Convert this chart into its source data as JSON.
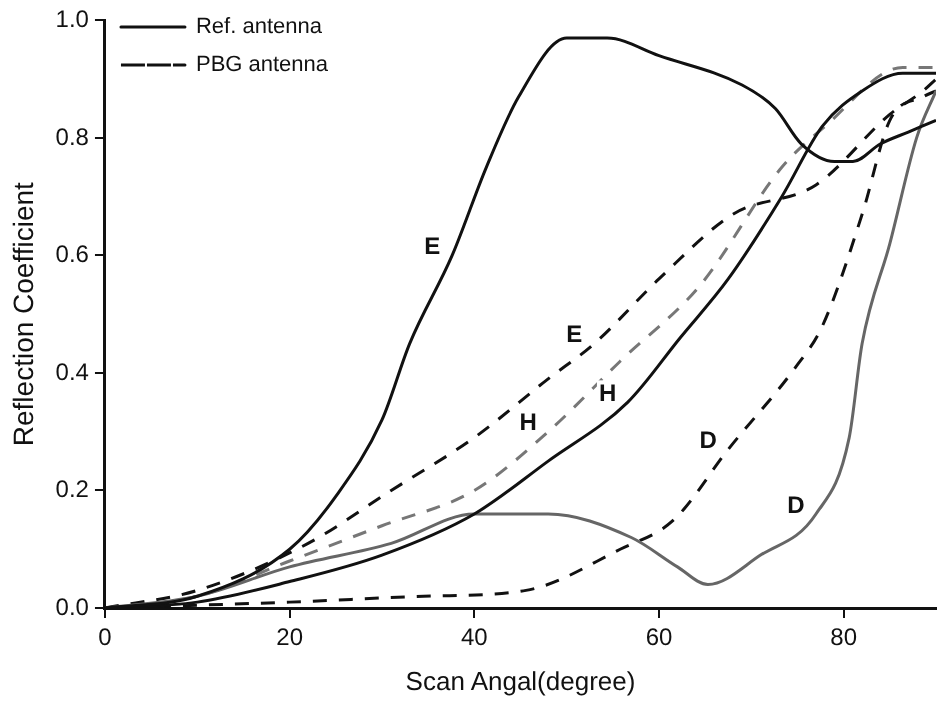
{
  "chart_data": {
    "type": "line",
    "xlabel": "Scan Angal(degree)",
    "ylabel": "Reflection Coefficient",
    "xlim": [
      0,
      90
    ],
    "xticks": [
      0,
      20,
      40,
      60,
      80
    ],
    "ylim": [
      0,
      1
    ],
    "yticks": [
      {
        "value": 0,
        "label": "0.0"
      },
      {
        "value": 0.2,
        "label": "0.2"
      },
      {
        "value": 0.4,
        "label": "0.4"
      },
      {
        "value": 0.6,
        "label": "0.6"
      },
      {
        "value": 0.8,
        "label": "0.8"
      },
      {
        "value": 1,
        "label": "1.0"
      }
    ],
    "grid": false,
    "legend": "top left",
    "marker": "none",
    "series": [
      {
        "name": "Ref. antenna",
        "color": "#111111",
        "line_style": "solid",
        "x": [
          0,
          10,
          20,
          25,
          30,
          33,
          37.6,
          41.3,
          44.8,
          50,
          54.4,
          60,
          69,
          72.6,
          75.4,
          79,
          81,
          84,
          87,
          90
        ],
        "values": [
          0,
          0.02,
          0.1,
          0.19,
          0.32,
          0.45,
          0.6,
          0.75,
          0.87,
          0.97,
          0.97,
          0.94,
          0.89,
          0.85,
          0.79,
          0.76,
          0.76,
          0.79,
          0.81,
          0.83
        ]
      },
      {
        "color": "#111111",
        "line_style": "solid",
        "x": [
          0,
          10,
          20,
          30,
          40,
          48,
          56.6,
          62.3,
          67.5,
          73.3,
          77.7,
          82,
          86.4,
          90
        ],
        "values": [
          0,
          0.01,
          0.045,
          0.09,
          0.16,
          0.25,
          0.35,
          0.46,
          0.56,
          0.7,
          0.82,
          0.88,
          0.91,
          0.91
        ]
      },
      {
        "color": "#666666",
        "line_style": "solid",
        "x": [
          0,
          10,
          20,
          31,
          40,
          48,
          57,
          62,
          65.3,
          71,
          77,
          80.6,
          82,
          85,
          87.9,
          90
        ],
        "values": [
          0,
          0.02,
          0.07,
          0.11,
          0.16,
          0.16,
          0.12,
          0.07,
          0.04,
          0.09,
          0.16,
          0.29,
          0.45,
          0.62,
          0.8,
          0.88
        ]
      },
      {
        "name": "PBG antenna",
        "color": "#111111",
        "line_style": "dashed",
        "x": [
          0,
          10,
          22,
          31,
          40,
          48,
          53,
          60,
          68,
          77,
          85,
          88.6,
          90
        ],
        "values": [
          0,
          0.03,
          0.11,
          0.2,
          0.29,
          0.39,
          0.45,
          0.56,
          0.67,
          0.72,
          0.84,
          0.88,
          0.9
        ]
      },
      {
        "color": "#777777",
        "line_style": "dashed",
        "x": [
          0,
          10,
          20,
          30,
          40,
          48,
          55.8,
          64.5,
          73.3,
          78,
          86.4,
          90
        ],
        "values": [
          0,
          0.02,
          0.08,
          0.14,
          0.2,
          0.3,
          0.42,
          0.55,
          0.75,
          0.82,
          0.92,
          0.92
        ]
      },
      {
        "color": "#111111",
        "line_style": "dashed",
        "x": [
          0,
          20,
          34.5,
          45.6,
          55.8,
          61.6,
          67.5,
          74.8,
          77.7,
          82,
          85,
          88.6,
          90
        ],
        "values": [
          0,
          0.01,
          0.02,
          0.03,
          0.1,
          0.15,
          0.27,
          0.41,
          0.48,
          0.67,
          0.83,
          0.87,
          0.88
        ]
      }
    ],
    "annotations": [
      {
        "text": "E",
        "x": 37.6,
        "y": 0.6
      },
      {
        "text": "E",
        "x": 53,
        "y": 0.45
      },
      {
        "text": "H",
        "x": 48,
        "y": 0.3
      },
      {
        "text": "H",
        "x": 56.6,
        "y": 0.35
      },
      {
        "text": "D",
        "x": 67.5,
        "y": 0.27
      },
      {
        "text": "D",
        "x": 77,
        "y": 0.16
      }
    ]
  }
}
